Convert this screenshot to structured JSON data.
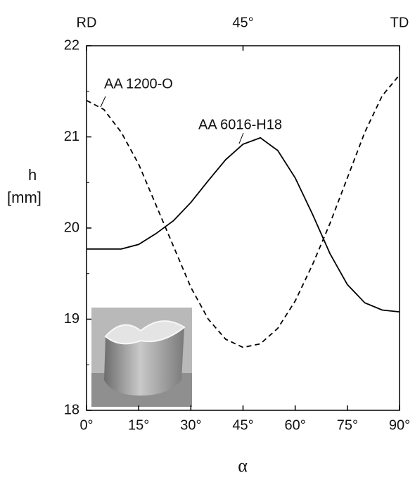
{
  "chart_data": {
    "type": "line",
    "x": [
      0,
      5,
      10,
      15,
      20,
      25,
      30,
      35,
      40,
      45,
      50,
      55,
      60,
      65,
      70,
      75,
      80,
      85,
      90
    ],
    "series": [
      {
        "name": "AA 1200-O",
        "color": "#000000",
        "linestyle": "dashed",
        "values": [
          21.4,
          21.3,
          21.05,
          20.7,
          20.25,
          19.8,
          19.35,
          19.0,
          18.78,
          18.69,
          18.73,
          18.9,
          19.2,
          19.6,
          20.05,
          20.55,
          21.05,
          21.45,
          21.68
        ]
      },
      {
        "name": "AA 6016-H18",
        "color": "#000000",
        "linestyle": "solid",
        "values": [
          19.77,
          19.77,
          19.77,
          19.82,
          19.94,
          20.08,
          20.28,
          20.52,
          20.75,
          20.92,
          20.99,
          20.85,
          20.55,
          20.15,
          19.72,
          19.38,
          19.18,
          19.1,
          19.08
        ]
      }
    ],
    "xlim": [
      0,
      90
    ],
    "xticks": [
      {
        "value": 0,
        "label": "0°"
      },
      {
        "value": 15,
        "label": "15°"
      },
      {
        "value": 30,
        "label": "30°"
      },
      {
        "value": 45,
        "label": "45°"
      },
      {
        "value": 60,
        "label": "60°"
      },
      {
        "value": 75,
        "label": "75°"
      },
      {
        "value": 90,
        "label": "90°"
      }
    ],
    "x2ticks": [
      {
        "value": 0,
        "label": "RD"
      },
      {
        "value": 45,
        "label": "45°"
      },
      {
        "value": 90,
        "label": "TD"
      }
    ],
    "ylim": [
      18,
      22
    ],
    "yticks": [
      18,
      19,
      20,
      21,
      22
    ],
    "xlabel": "α",
    "ylabel": [
      "h",
      "[mm]"
    ]
  }
}
